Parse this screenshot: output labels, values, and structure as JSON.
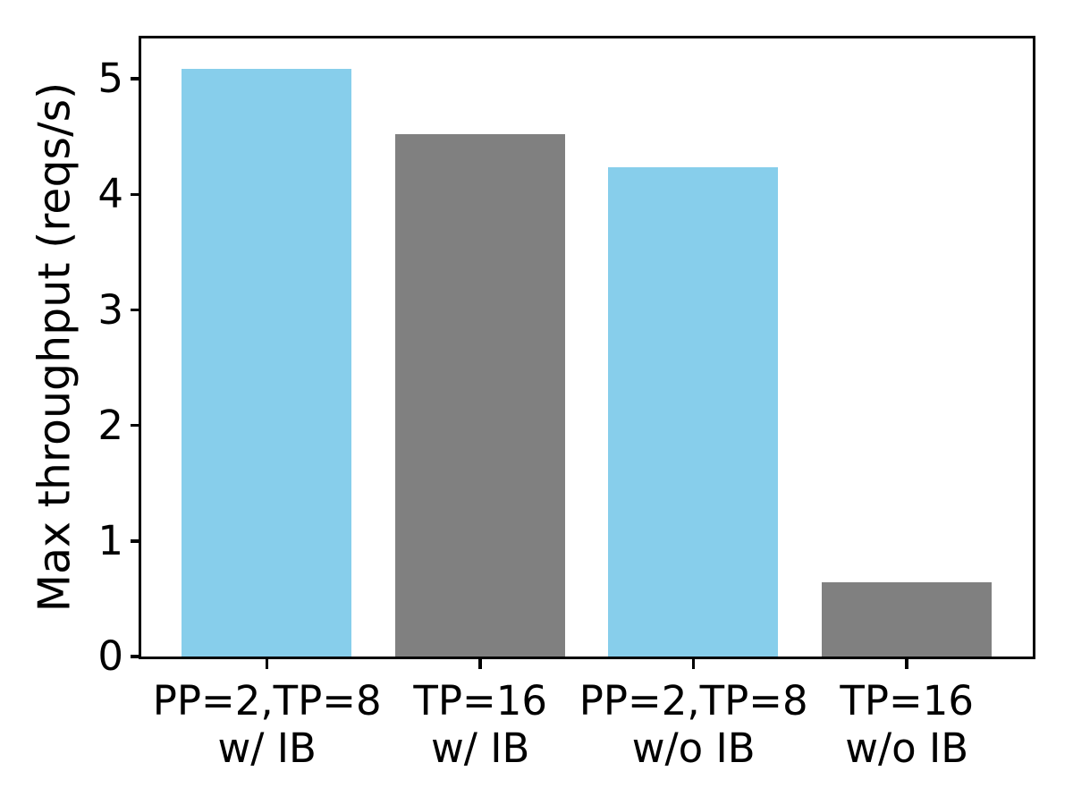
{
  "chart_data": {
    "type": "bar",
    "title": "",
    "xlabel": "",
    "ylabel": "Max throughput (reqs/s)",
    "categories": [
      "PP=2,TP=8\nw/ IB",
      "TP=16\nw/ IB",
      "PP=2,TP=8\nw/o IB",
      "TP=16\nw/o IB"
    ],
    "values": [
      5.08,
      4.52,
      4.23,
      0.64
    ],
    "bar_colors": [
      "#87CEEB",
      "#808080",
      "#87CEEB",
      "#808080"
    ],
    "yticks": [
      0,
      1,
      2,
      3,
      4,
      5
    ],
    "ylim": [
      0,
      5.35
    ],
    "grid": false,
    "legend_position": "none",
    "colors": {
      "skyblue": "#87CEEB",
      "gray": "#808080",
      "axis": "#000000",
      "background": "#FFFFFF"
    }
  }
}
